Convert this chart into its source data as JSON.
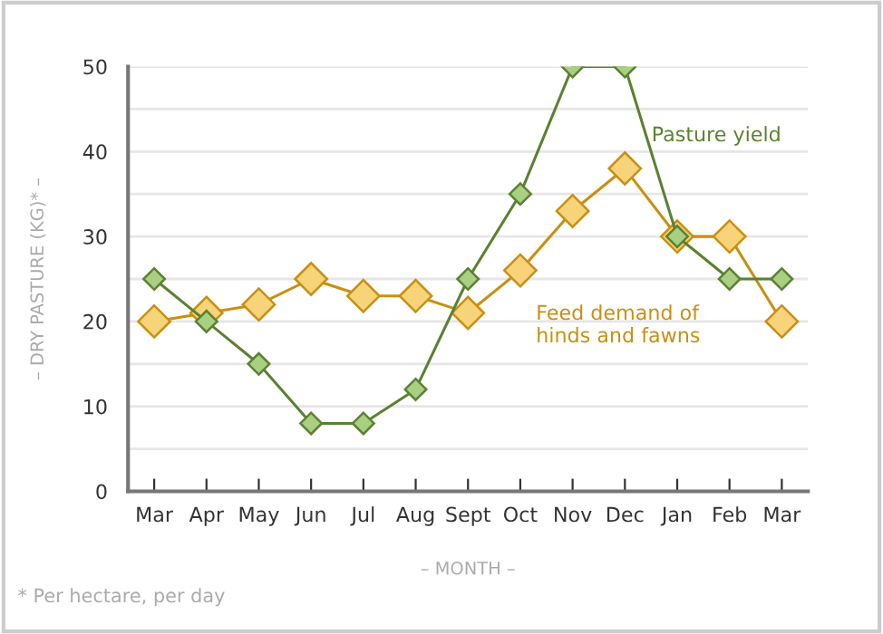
{
  "chart_data": {
    "type": "line",
    "categories": [
      "Mar",
      "Apr",
      "May",
      "Jun",
      "Jul",
      "Aug",
      "Sept",
      "Oct",
      "Nov",
      "Dec",
      "Jan",
      "Feb",
      "Mar"
    ],
    "series": [
      {
        "name": "Pasture yield",
        "color": "#5b8132",
        "values": [
          25,
          20,
          15,
          8,
          8,
          12,
          25,
          35,
          50,
          50,
          30,
          25,
          25
        ]
      },
      {
        "name": "Feed demand of\nhinds and fawns",
        "color": "#c98f12",
        "values": [
          20,
          21,
          22,
          25,
          23,
          23,
          21,
          26,
          33,
          38,
          30,
          30,
          20
        ]
      }
    ],
    "ylim": [
      0,
      50
    ],
    "yticks": [
      0,
      {
        "value": 5,
        "label": null
      },
      10,
      {
        "value": 15,
        "label": null
      },
      20,
      {
        "value": 25,
        "label": null
      },
      30,
      {
        "value": 35,
        "label": null
      },
      40,
      {
        "value": 45,
        "label": null
      },
      50
    ],
    "grid": "y",
    "legend": false,
    "marker": "diamond",
    "line_style": "solid",
    "xlabel": "– MONTH –",
    "ylabel": "– DRY PASTURE (KG)* –",
    "annotations": [
      "* Per hectare, per day"
    ]
  }
}
